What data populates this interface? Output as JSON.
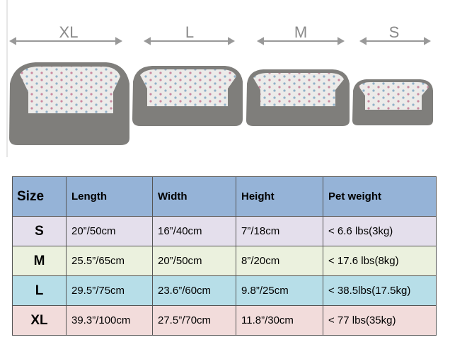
{
  "sizes": [
    "XL",
    "L",
    "M",
    "S"
  ],
  "table": {
    "header": [
      "Size",
      "Length",
      "Width",
      "Height",
      "Pet weight"
    ],
    "rows": [
      [
        "S",
        "20”/50cm",
        "16”/40cm",
        "7”/18cm",
        "< 6.6 lbs(3kg)"
      ],
      [
        "M",
        "25.5”/65cm",
        "20”/50cm",
        "8”/20cm",
        "< 17.6 lbs(8kg)"
      ],
      [
        "L",
        "29.5”/75cm",
        "23.6”/60cm",
        "9.8”/25cm",
        "< 38.5lbs(17.5kg)"
      ],
      [
        "XL",
        "39.3”/100cm",
        "27.5”/70cm",
        "11.8”/30cm",
        "< 77 lbs(35kg)"
      ]
    ]
  }
}
